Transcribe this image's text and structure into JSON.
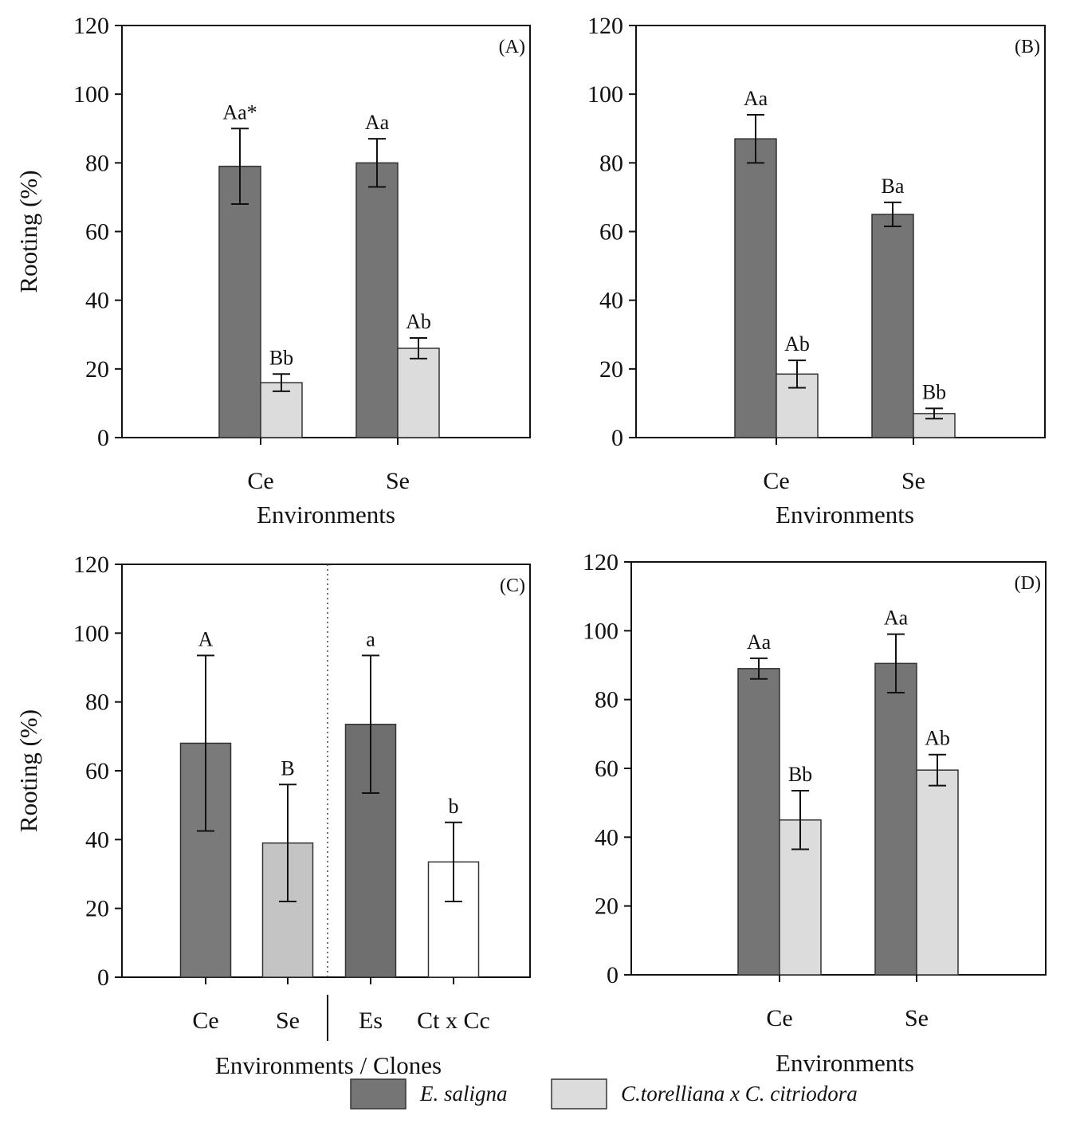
{
  "chart_data": [
    {
      "type": "bar",
      "panel": "(A)",
      "xlabel": "Environments",
      "ylabel": "Rooting (%)",
      "ylim": [
        0,
        120
      ],
      "yticks": [
        "0",
        "20",
        "40",
        "60",
        "80",
        "100",
        "120"
      ],
      "categories": [
        "Ce",
        "Se"
      ],
      "series": [
        {
          "name": "E. saligna",
          "values": [
            79,
            80
          ],
          "errors": [
            11,
            7
          ],
          "labels": [
            "Aa*",
            "Aa"
          ]
        },
        {
          "name": "C.torelliana x C. citriodora",
          "values": [
            16,
            26
          ],
          "errors": [
            2.5,
            3
          ],
          "labels": [
            "Bb",
            "Ab"
          ]
        }
      ]
    },
    {
      "type": "bar",
      "panel": "(B)",
      "xlabel": "Environments",
      "ylabel": "",
      "ylim": [
        0,
        120
      ],
      "yticks": [
        "0",
        "20",
        "40",
        "60",
        "80",
        "100",
        "120"
      ],
      "categories": [
        "Ce",
        "Se"
      ],
      "series": [
        {
          "name": "E. saligna",
          "values": [
            87,
            65
          ],
          "errors": [
            7,
            3.5
          ],
          "labels": [
            "Aa",
            "Ba"
          ]
        },
        {
          "name": "C.torelliana x C. citriodora",
          "values": [
            18.5,
            7
          ],
          "errors": [
            4,
            1.5
          ],
          "labels": [
            "Ab",
            "Bb"
          ]
        }
      ]
    },
    {
      "type": "bar",
      "panel": "(C)",
      "xlabel": "Environments / Clones",
      "ylabel": "Rooting (%)",
      "ylim": [
        0,
        120
      ],
      "yticks": [
        "0",
        "20",
        "40",
        "60",
        "80",
        "100",
        "120"
      ],
      "categories": [
        "Ce",
        "Se",
        "Es",
        "Ct x Cc"
      ],
      "values": [
        68,
        39,
        73.5,
        33.5
      ],
      "errors": [
        25.5,
        17,
        20,
        11.5
      ],
      "labels": [
        "A",
        "B",
        "a",
        "b"
      ],
      "colors": [
        "#7a7a7a",
        "#c4c4c4",
        "#6f6f6f",
        "#ffffff"
      ]
    },
    {
      "type": "bar",
      "panel": "(D)",
      "xlabel": "Environments",
      "ylabel": "",
      "ylim": [
        0,
        120
      ],
      "yticks": [
        "0",
        "20",
        "40",
        "60",
        "80",
        "100",
        "120"
      ],
      "categories": [
        "Ce",
        "Se"
      ],
      "series": [
        {
          "name": "E. saligna",
          "values": [
            89,
            90.5
          ],
          "errors": [
            3,
            8.5
          ],
          "labels": [
            "Aa",
            "Aa"
          ]
        },
        {
          "name": "C.torelliana x C. citriodora",
          "values": [
            45,
            59.5
          ],
          "errors": [
            8.5,
            4.5
          ],
          "labels": [
            "Bb",
            "Ab"
          ]
        }
      ]
    }
  ],
  "legend": {
    "items": [
      {
        "label": "E. saligna",
        "color": "#757575"
      },
      {
        "label": "C.torelliana x C. citriodora",
        "color": "#dcdcdc"
      }
    ],
    "placement": "bottom-right"
  }
}
